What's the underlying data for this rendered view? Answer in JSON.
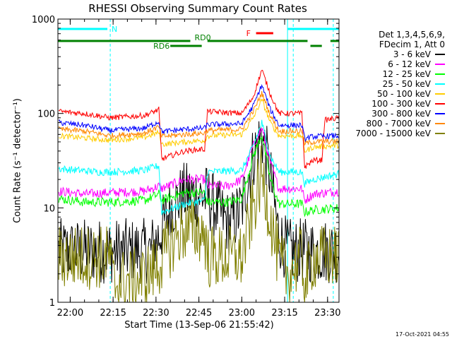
{
  "title": "RHESSI Observing Summary Count Rates",
  "footer_date": "17-Oct-2021 04:55",
  "legend": {
    "header": [
      "Det 1,3,4,5,6,9,",
      "FDecim 1, Att 0"
    ],
    "entries": [
      {
        "label": "3 - 6 keV",
        "color": "#000000"
      },
      {
        "label": "6 - 12 keV",
        "color": "#ff00ff"
      },
      {
        "label": "12 - 25 keV",
        "color": "#00ff00"
      },
      {
        "label": "25 - 50 keV",
        "color": "#00ffff"
      },
      {
        "label": "50 - 100 keV",
        "color": "#ffcc00"
      },
      {
        "label": "100 - 300 keV",
        "color": "#ff0000"
      },
      {
        "label": "300 - 800 keV",
        "color": "#0000ff"
      },
      {
        "label": "800 - 7000 keV",
        "color": "#ff8800"
      },
      {
        "label": "7000 - 15000 keV",
        "color": "#808000"
      }
    ]
  },
  "chart_data": {
    "type": "line",
    "title": "RHESSI Observing Summary Count Rates",
    "xlabel": "Start Time (13-Sep-06 21:55:42)",
    "ylabel": "Count Rate (s⁻¹ detector⁻¹)",
    "yscale": "log",
    "ylim": [
      1,
      1000
    ],
    "xlim": [
      "21:55:42",
      "23:34:00"
    ],
    "yticks": [
      {
        "value": 1,
        "label": "1"
      },
      {
        "value": 10,
        "label": "10"
      },
      {
        "value": 100,
        "label": "100"
      },
      {
        "value": 1000,
        "label": "1000"
      }
    ],
    "xticks": [
      {
        "time": "22:00",
        "label": "22:00"
      },
      {
        "time": "22:15",
        "label": "22:15"
      },
      {
        "time": "22:30",
        "label": "22:30"
      },
      {
        "time": "22:45",
        "label": "22:45"
      },
      {
        "time": "23:00",
        "label": "23:00"
      },
      {
        "time": "23:15",
        "label": "23:15"
      },
      {
        "time": "23:30",
        "label": "23:30"
      }
    ],
    "annotations": {
      "night_bars": [
        {
          "label": "N",
          "start": "21:55:42",
          "end": "22:13",
          "color": "#00ffff"
        },
        {
          "label": "",
          "start": "23:16",
          "end": "23:34",
          "color": "#00ffff"
        }
      ],
      "flare_bars": [
        {
          "label": "F",
          "start": "23:05",
          "end": "23:11",
          "color": "#ff0000"
        }
      ],
      "rd_bars": [
        {
          "label": "RD0",
          "start": "21:55:42",
          "end": "22:42",
          "color": "#008000"
        },
        {
          "label": "",
          "start": "22:48",
          "end": "23:23",
          "color": "#008000"
        },
        {
          "label": "",
          "start": "23:31",
          "end": "23:34",
          "color": "#008000"
        },
        {
          "label": "RD6",
          "start": "22:35",
          "end": "22:46",
          "color": "#008000"
        },
        {
          "label": "",
          "start": "23:24",
          "end": "23:28",
          "color": "#008000"
        }
      ],
      "vlines_solid": [
        "21:55:42",
        "23:16"
      ],
      "vlines_dashed": [
        "22:14",
        "23:18",
        "23:32"
      ]
    },
    "series": [
      {
        "name": "3 - 6 keV",
        "color": "#000000",
        "points": [
          [
            "21:56",
            3.5
          ],
          [
            "22:14",
            3.5
          ],
          [
            "22:28",
            3.5
          ],
          [
            "22:31",
            5
          ],
          [
            "22:35",
            10
          ],
          [
            "22:40",
            14
          ],
          [
            "22:48",
            13
          ],
          [
            "22:52",
            9
          ],
          [
            "22:56",
            6.5
          ],
          [
            "23:00",
            10
          ],
          [
            "23:04",
            35
          ],
          [
            "23:07",
            60
          ],
          [
            "23:10",
            22
          ],
          [
            "23:13",
            5
          ],
          [
            "23:16",
            3.5
          ],
          [
            "23:34",
            3.5
          ]
        ]
      },
      {
        "name": "6 - 12 keV",
        "color": "#ff00ff",
        "points": [
          [
            "21:56",
            15
          ],
          [
            "22:05",
            14
          ],
          [
            "22:14",
            14.5
          ],
          [
            "22:26",
            15
          ],
          [
            "22:31",
            17
          ],
          [
            "22:32",
            16
          ],
          [
            "22:40",
            20
          ],
          [
            "22:47",
            20
          ],
          [
            "22:48",
            17
          ],
          [
            "22:55",
            17
          ],
          [
            "23:00",
            20
          ],
          [
            "23:04",
            45
          ],
          [
            "23:07",
            70
          ],
          [
            "23:10",
            30
          ],
          [
            "23:13",
            16
          ],
          [
            "23:21",
            16
          ],
          [
            "23:22",
            12
          ],
          [
            "23:25",
            14
          ],
          [
            "23:34",
            15
          ]
        ]
      },
      {
        "name": "12 - 25 keV",
        "color": "#00ff00",
        "points": [
          [
            "21:56",
            12.5
          ],
          [
            "22:05",
            11.5
          ],
          [
            "22:14",
            11.5
          ],
          [
            "22:26",
            12
          ],
          [
            "22:31",
            14
          ],
          [
            "22:32",
            12
          ],
          [
            "22:40",
            14.5
          ],
          [
            "22:47",
            14.5
          ],
          [
            "22:48",
            11.5
          ],
          [
            "22:55",
            11.5
          ],
          [
            "23:00",
            12.5
          ],
          [
            "23:04",
            35
          ],
          [
            "23:07",
            60
          ],
          [
            "23:10",
            20
          ],
          [
            "23:13",
            11
          ],
          [
            "23:21",
            11
          ],
          [
            "23:22",
            9
          ],
          [
            "23:25",
            9.5
          ],
          [
            "23:34",
            10
          ]
        ]
      },
      {
        "name": "25 - 50 keV",
        "color": "#00ffff",
        "points": [
          [
            "21:56",
            26
          ],
          [
            "22:10",
            24
          ],
          [
            "22:14",
            24
          ],
          [
            "22:26",
            25
          ],
          [
            "22:31",
            28
          ],
          [
            "22:32",
            9
          ],
          [
            "22:40",
            11
          ],
          [
            "22:47",
            12
          ],
          [
            "22:48",
            24
          ],
          [
            "23:00",
            25
          ],
          [
            "23:04",
            45
          ],
          [
            "23:07",
            80
          ],
          [
            "23:10",
            35
          ],
          [
            "23:13",
            24
          ],
          [
            "23:21",
            24
          ],
          [
            "23:22",
            18
          ],
          [
            "23:25",
            20
          ],
          [
            "23:34",
            23
          ]
        ]
      },
      {
        "name": "50 - 100 keV",
        "color": "#ffcc00",
        "points": [
          [
            "21:56",
            58
          ],
          [
            "22:05",
            55
          ],
          [
            "22:14",
            52
          ],
          [
            "22:26",
            56
          ],
          [
            "22:31",
            63
          ],
          [
            "22:32",
            47
          ],
          [
            "22:40",
            50
          ],
          [
            "22:47",
            52
          ],
          [
            "22:48",
            58
          ],
          [
            "23:00",
            60
          ],
          [
            "23:04",
            90
          ],
          [
            "23:07",
            140
          ],
          [
            "23:10",
            80
          ],
          [
            "23:13",
            58
          ],
          [
            "23:21",
            58
          ],
          [
            "23:22",
            40
          ],
          [
            "23:25",
            44
          ],
          [
            "23:34",
            46
          ]
        ]
      },
      {
        "name": "100 - 300 keV",
        "color": "#ff0000",
        "points": [
          [
            "21:56",
            105
          ],
          [
            "22:05",
            100
          ],
          [
            "22:14",
            90
          ],
          [
            "22:26",
            95
          ],
          [
            "22:31",
            110
          ],
          [
            "22:32",
            33
          ],
          [
            "22:40",
            40
          ],
          [
            "22:47",
            42
          ],
          [
            "22:48",
            105
          ],
          [
            "23:00",
            100
          ],
          [
            "23:04",
            150
          ],
          [
            "23:07",
            290
          ],
          [
            "23:10",
            160
          ],
          [
            "23:13",
            100
          ],
          [
            "23:21",
            100
          ],
          [
            "23:22",
            27
          ],
          [
            "23:25",
            32
          ],
          [
            "23:28",
            32
          ],
          [
            "23:29",
            85
          ],
          [
            "23:34",
            90
          ]
        ]
      },
      {
        "name": "300 - 800 keV",
        "color": "#0000ff",
        "points": [
          [
            "21:56",
            80
          ],
          [
            "22:05",
            75
          ],
          [
            "22:14",
            66
          ],
          [
            "22:26",
            70
          ],
          [
            "22:31",
            82
          ],
          [
            "22:32",
            64
          ],
          [
            "22:40",
            68
          ],
          [
            "22:47",
            70
          ],
          [
            "22:48",
            76
          ],
          [
            "23:00",
            78
          ],
          [
            "23:04",
            120
          ],
          [
            "23:07",
            200
          ],
          [
            "23:10",
            110
          ],
          [
            "23:13",
            75
          ],
          [
            "23:21",
            75
          ],
          [
            "23:22",
            54
          ],
          [
            "23:25",
            57
          ],
          [
            "23:34",
            58
          ]
        ]
      },
      {
        "name": "800 - 7000 keV",
        "color": "#ff8800",
        "points": [
          [
            "21:56",
            68
          ],
          [
            "22:05",
            65
          ],
          [
            "22:14",
            58
          ],
          [
            "22:26",
            62
          ],
          [
            "22:31",
            72
          ],
          [
            "22:32",
            57
          ],
          [
            "22:40",
            60
          ],
          [
            "22:47",
            62
          ],
          [
            "22:48",
            66
          ],
          [
            "23:00",
            68
          ],
          [
            "23:04",
            105
          ],
          [
            "23:07",
            165
          ],
          [
            "23:10",
            95
          ],
          [
            "23:13",
            65
          ],
          [
            "23:21",
            65
          ],
          [
            "23:22",
            48
          ],
          [
            "23:25",
            50
          ],
          [
            "23:34",
            51
          ]
        ]
      },
      {
        "name": "7000 - 15000 keV",
        "color": "#808000",
        "points": [
          [
            "21:56",
            3
          ],
          [
            "22:14",
            3
          ],
          [
            "22:15",
            1.6
          ],
          [
            "22:26",
            1.8
          ],
          [
            "22:31",
            2.5
          ],
          [
            "22:35",
            4
          ],
          [
            "22:40",
            6
          ],
          [
            "22:47",
            5.5
          ],
          [
            "22:48",
            3
          ],
          [
            "22:55",
            3
          ],
          [
            "23:00",
            3
          ],
          [
            "23:04",
            10
          ],
          [
            "23:07",
            22
          ],
          [
            "23:10",
            8
          ],
          [
            "23:13",
            2.6
          ],
          [
            "23:16",
            2
          ],
          [
            "23:21",
            3
          ],
          [
            "23:22",
            1.5
          ],
          [
            "23:25",
            3
          ],
          [
            "23:34",
            3
          ]
        ]
      }
    ]
  }
}
